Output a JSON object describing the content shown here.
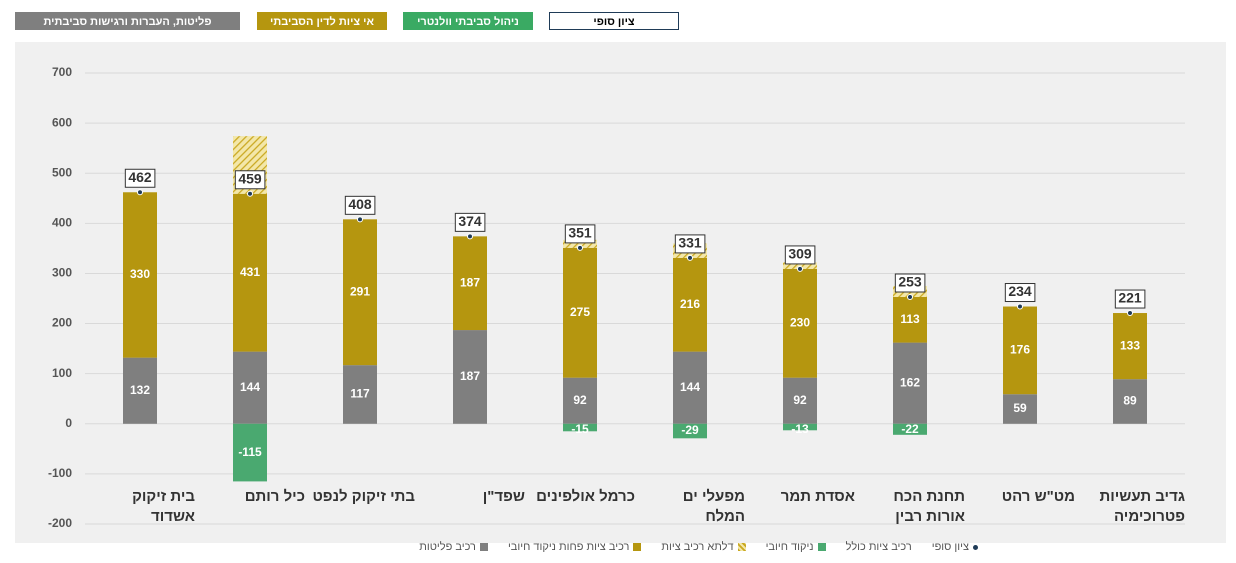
{
  "tabs": [
    {
      "label": "ציון סופי",
      "color": "#ffffff",
      "text_color": "#000000",
      "border": "#1f3b57"
    },
    {
      "label": "ניהול סביבתי וולנטרי",
      "color": "#3aaa63",
      "text_color": "#ffffff",
      "border": "#3aaa63"
    },
    {
      "label": "אי ציות לדין הסביבתי",
      "color": "#b5960f",
      "text_color": "#ffffff",
      "border": "#b5960f"
    },
    {
      "label": "פליטות, העברות ורגישות סביבתית",
      "color": "#7f7f7f",
      "text_color": "#ffffff",
      "border": "#7f7f7f"
    }
  ],
  "chart_data": {
    "type": "bar",
    "stacked": true,
    "categories": [
      "בית זיקוק אשדוד",
      "כיל רותם",
      "בתי זיקוק לנפט",
      "שפד\"ן",
      "כרמל אולפינים",
      "מפעלי ים המלח",
      "אסדת תמר",
      "תחנת הכח אורות רבין",
      "מט\"ש רהט",
      "גדיב תעשיות פטרוכימיה"
    ],
    "series": [
      {
        "name": "רכיב פליטות",
        "kind": "bar",
        "color": "#7f7f7f",
        "values": [
          132,
          144,
          117,
          187,
          92,
          144,
          92,
          162,
          59,
          89
        ]
      },
      {
        "name": "רכיב ציות פחות ניקוד חיובי",
        "kind": "bar",
        "color": "#b5960f",
        "values": [
          330,
          315,
          291,
          187,
          259,
          187,
          217,
          91,
          175,
          132
        ]
      },
      {
        "name": "דלתא רכיב ציות",
        "kind": "hatch",
        "color": "#c9a820",
        "values": [
          null,
          115,
          null,
          null,
          16,
          29,
          13,
          22,
          null,
          null
        ]
      },
      {
        "name": "ניקוד חיובי",
        "kind": "bar",
        "color": "#4aa970",
        "values": [
          null,
          -115,
          null,
          null,
          -15,
          -29,
          -13,
          -22,
          null,
          null
        ]
      },
      {
        "name": "רכיב ציות כולל",
        "kind": "label",
        "values": [
          330,
          431,
          291,
          187,
          275,
          216,
          230,
          113,
          176,
          133
        ]
      },
      {
        "name": "ציון סופי",
        "kind": "point",
        "color": "#1f3b57",
        "values": [
          462,
          459,
          408,
          374,
          351,
          331,
          309,
          253,
          234,
          221
        ]
      }
    ],
    "ylim": [
      -200,
      700
    ],
    "yticks": [
      -200,
      -100,
      0,
      100,
      200,
      300,
      400,
      500,
      600,
      700
    ],
    "grid": true
  }
}
